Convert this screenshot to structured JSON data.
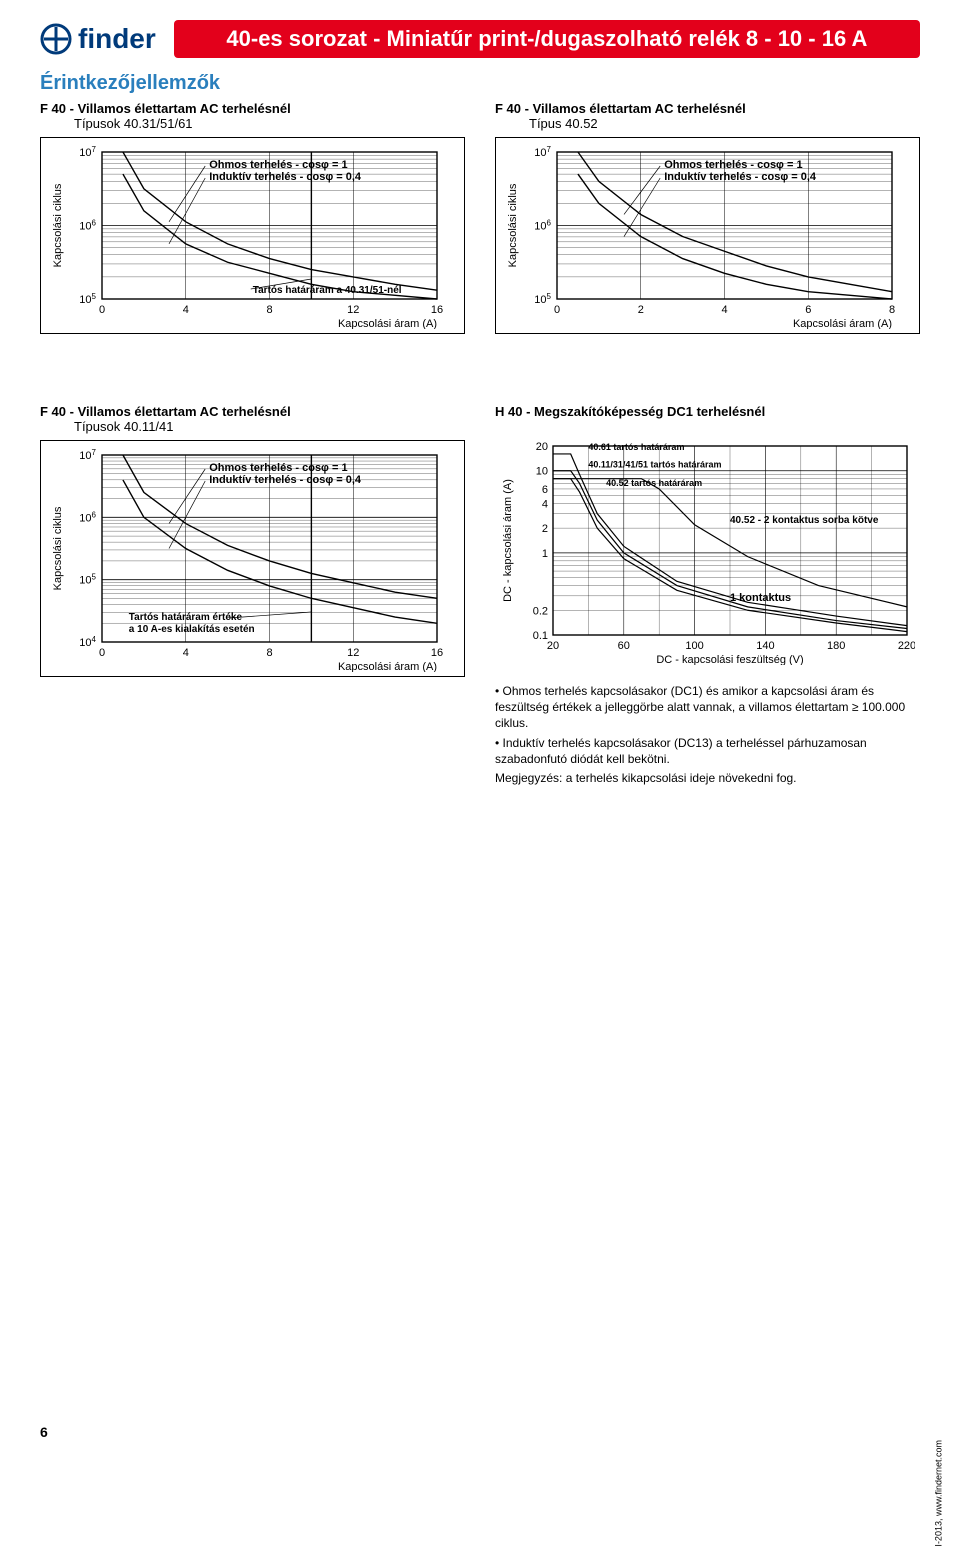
{
  "header": {
    "logo_text": "finder",
    "title": "40-es sorozat - Miniatűr print-/dugaszolható relék 8 - 10 - 16 A"
  },
  "section_title": "Érintkezőjellemzők",
  "charts": {
    "c1": {
      "heading": "F 40 - Villamos élettartam AC terhelésnél",
      "sub": "Típusok 40.31/51/61",
      "type": "decay-loglin",
      "y_label": "Kapcsolási ciklus",
      "x_label": "Kapcsolási áram (A)",
      "x_ticks": [
        0,
        4,
        8,
        12,
        16
      ],
      "y_exp": [
        5,
        6,
        7
      ],
      "annotations": [
        "Ohmos terhelés - cosφ = 1",
        "Induktív terhelés - cosφ = 0,4",
        "Tartós határáram a 40.31/51-nél"
      ],
      "curves": [
        {
          "color": "#000",
          "width": 1.4,
          "points": [
            [
              1,
              7.0
            ],
            [
              2,
              6.5
            ],
            [
              4,
              6.05
            ],
            [
              6,
              5.75
            ],
            [
              8,
              5.55
            ],
            [
              10,
              5.4
            ],
            [
              12,
              5.3
            ],
            [
              14,
              5.2
            ],
            [
              16,
              5.12
            ]
          ]
        },
        {
          "color": "#000",
          "width": 1.4,
          "points": [
            [
              1,
              6.7
            ],
            [
              2,
              6.2
            ],
            [
              4,
              5.75
            ],
            [
              6,
              5.5
            ],
            [
              8,
              5.35
            ],
            [
              10,
              5.2
            ],
            [
              12,
              5.1
            ],
            [
              14,
              5.05
            ],
            [
              16,
              5.0
            ]
          ]
        }
      ],
      "vline": {
        "x": 10,
        "color": "#000"
      }
    },
    "c2": {
      "heading": "F 40 - Villamos élettartam AC terhelésnél",
      "sub": "Típus 40.52",
      "type": "decay-loglin",
      "y_label": "Kapcsolási ciklus",
      "x_label": "Kapcsolási áram (A)",
      "x_ticks": [
        0,
        2,
        4,
        6,
        8
      ],
      "y_exp": [
        5,
        6,
        7
      ],
      "annotations": [
        "Ohmos terhelés - cosφ = 1",
        "Induktív terhelés - cosφ = 0,4"
      ],
      "curves": [
        {
          "color": "#000",
          "width": 1.4,
          "points": [
            [
              0.5,
              7.0
            ],
            [
              1,
              6.6
            ],
            [
              2,
              6.15
            ],
            [
              3,
              5.85
            ],
            [
              4,
              5.65
            ],
            [
              5,
              5.45
            ],
            [
              6,
              5.3
            ],
            [
              7,
              5.2
            ],
            [
              8,
              5.1
            ]
          ]
        },
        {
          "color": "#000",
          "width": 1.4,
          "points": [
            [
              0.5,
              6.7
            ],
            [
              1,
              6.3
            ],
            [
              2,
              5.85
            ],
            [
              3,
              5.55
            ],
            [
              4,
              5.35
            ],
            [
              5,
              5.2
            ],
            [
              6,
              5.1
            ],
            [
              7,
              5.05
            ],
            [
              8,
              5.0
            ]
          ]
        }
      ]
    },
    "c3": {
      "heading": "F 40 - Villamos élettartam AC terhelésnél",
      "sub": "Típusok 40.11/41",
      "type": "decay-loglin",
      "y_label": "Kapcsolási ciklus",
      "x_label": "Kapcsolási áram (A)",
      "x_ticks": [
        0,
        4,
        8,
        12,
        16
      ],
      "y_exp": [
        4,
        5,
        6,
        7
      ],
      "annotations": [
        "Ohmos terhelés - cosφ = 1",
        "Induktív terhelés - cosφ = 0,4",
        "Tartós határáram értéke",
        "a 10 A-es kialakítás esetén"
      ],
      "curves": [
        {
          "color": "#000",
          "width": 1.4,
          "points": [
            [
              1,
              7.0
            ],
            [
              2,
              6.4
            ],
            [
              4,
              5.9
            ],
            [
              6,
              5.55
            ],
            [
              8,
              5.3
            ],
            [
              10,
              5.1
            ],
            [
              12,
              4.95
            ],
            [
              14,
              4.8
            ],
            [
              16,
              4.7
            ]
          ]
        },
        {
          "color": "#000",
          "width": 1.4,
          "points": [
            [
              1,
              6.6
            ],
            [
              2,
              6.0
            ],
            [
              4,
              5.5
            ],
            [
              6,
              5.15
            ],
            [
              8,
              4.9
            ],
            [
              10,
              4.7
            ],
            [
              12,
              4.55
            ],
            [
              14,
              4.4
            ],
            [
              16,
              4.3
            ]
          ]
        }
      ],
      "vline": {
        "x": 10,
        "color": "#000"
      }
    },
    "c4": {
      "heading": "H 40 - Megszakítóképesség DC1 terhelésnél",
      "type": "dc-break",
      "y_label": "DC - kapcsolási áram (A)",
      "x_label": "DC - kapcsolási feszültség (V)",
      "x_ticks": [
        20,
        60,
        100,
        140,
        180,
        220
      ],
      "y_ticks": [
        0.1,
        0.2,
        1,
        2,
        4,
        6,
        10,
        20
      ],
      "series_labels": [
        "40.61 tartós határáram",
        "40.11/31/41/51 tartós határáram",
        "40.52 tartós határáram",
        "40.52 - 2 kontaktus sorba kötve",
        "1 kontaktus"
      ],
      "curves": [
        {
          "color": "#000",
          "width": 1.2,
          "points": [
            [
              20,
              16
            ],
            [
              30,
              16
            ],
            [
              35,
              9
            ],
            [
              45,
              3
            ],
            [
              60,
              1.2
            ],
            [
              90,
              0.45
            ],
            [
              130,
              0.25
            ],
            [
              180,
              0.17
            ],
            [
              220,
              0.13
            ]
          ]
        },
        {
          "color": "#000",
          "width": 1.2,
          "points": [
            [
              20,
              10
            ],
            [
              30,
              10
            ],
            [
              35,
              7
            ],
            [
              45,
              2.5
            ],
            [
              60,
              1.0
            ],
            [
              90,
              0.4
            ],
            [
              130,
              0.22
            ],
            [
              180,
              0.15
            ],
            [
              220,
              0.12
            ]
          ]
        },
        {
          "color": "#000",
          "width": 1.2,
          "points": [
            [
              20,
              8
            ],
            [
              30,
              8
            ],
            [
              35,
              5.5
            ],
            [
              45,
              2.0
            ],
            [
              60,
              0.85
            ],
            [
              90,
              0.35
            ],
            [
              130,
              0.2
            ],
            [
              180,
              0.14
            ],
            [
              220,
              0.11
            ]
          ]
        },
        {
          "color": "#000",
          "width": 1.2,
          "points": [
            [
              20,
              8
            ],
            [
              50,
              8
            ],
            [
              70,
              8
            ],
            [
              80,
              6
            ],
            [
              100,
              2.2
            ],
            [
              130,
              0.9
            ],
            [
              170,
              0.4
            ],
            [
              220,
              0.22
            ]
          ]
        }
      ]
    }
  },
  "notes": [
    "• Ohmos terhelés kapcsolásakor (DC1) és amikor a kapcsolási áram és feszültség értékek a jelleggörbe alatt vannak, a villamos élettartam ≥ 100.000 ciklus.",
    "• Induktív terhelés kapcsolásakor (DC13) a terheléssel párhuzamosan szabadonfutó diódát kell bekötni.",
    "Megjegyzés: a terhelés kikapcsolási ideje növekedni fog."
  ],
  "footer": {
    "page": "6",
    "side": "I-2013, www.findernet.com"
  },
  "style": {
    "grid_color": "#000000",
    "bg": "#ffffff",
    "line_color": "#000000",
    "brand_color": "#003a7a",
    "bar_color": "#e3001b"
  }
}
